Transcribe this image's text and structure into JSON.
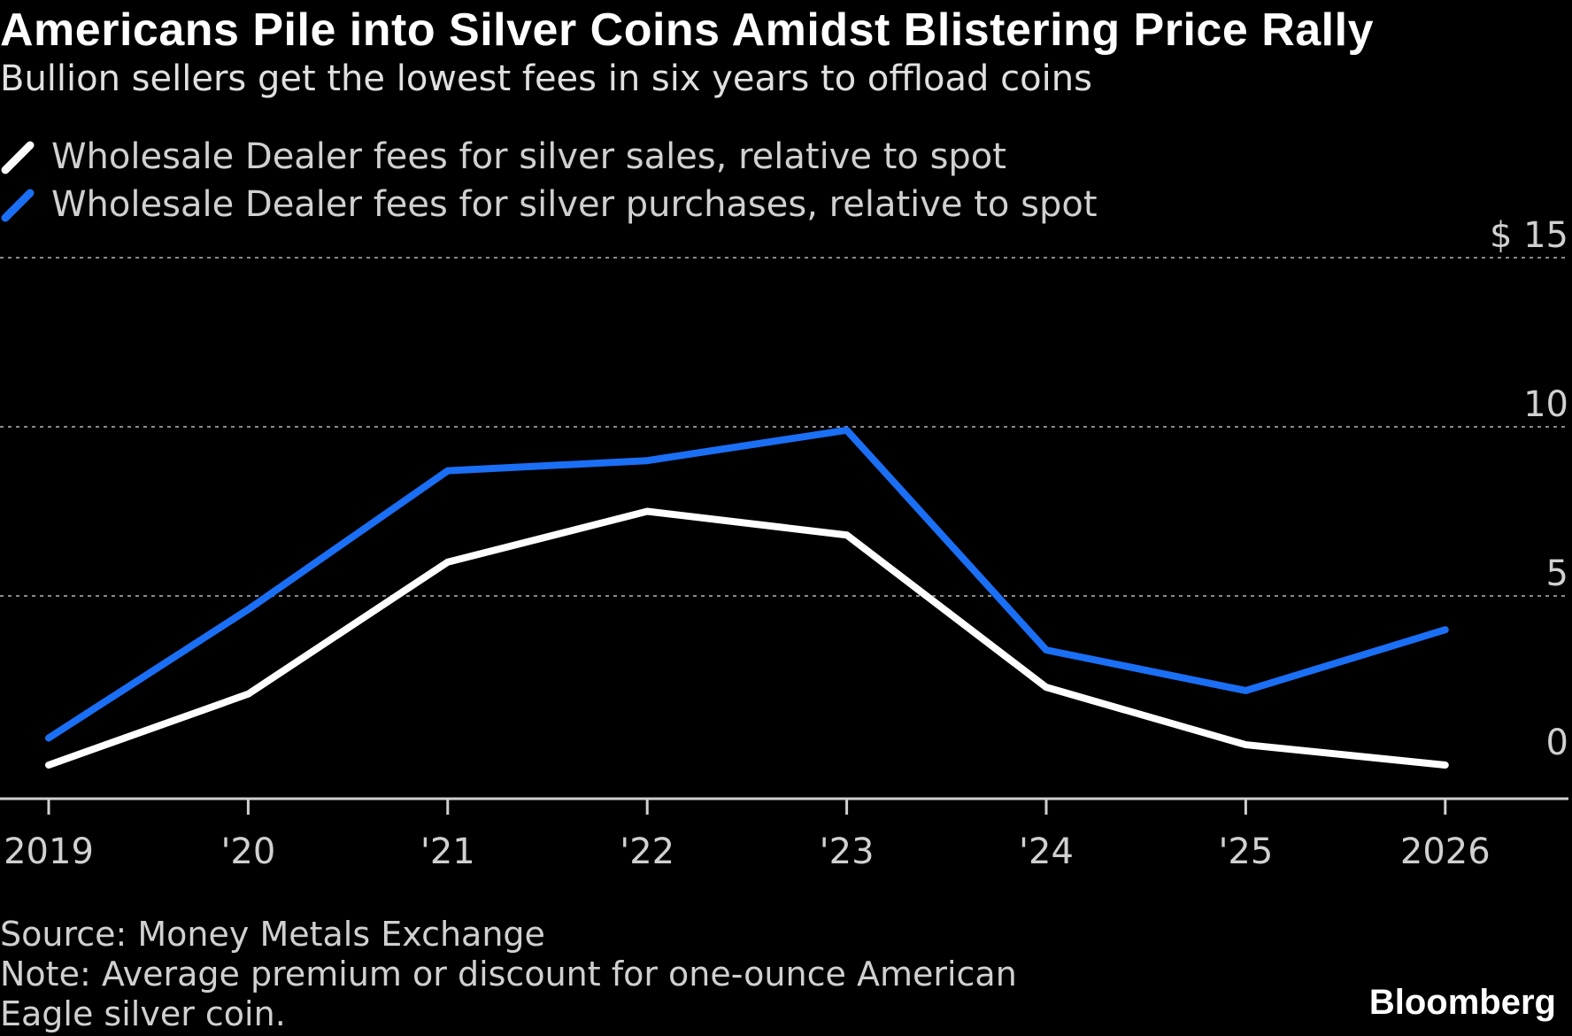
{
  "title": "Americans Pile into Silver Coins Amidst Blistering Price Rally",
  "subtitle": "Bullion sellers get the lowest fees in six years to offload coins",
  "legend": [
    {
      "label": "Wholesale Dealer fees for silver sales, relative to spot",
      "color": "#ffffff"
    },
    {
      "label": "Wholesale Dealer fees for silver purchases, relative to spot",
      "color": "#1a6ff5"
    }
  ],
  "source": "Source: Money Metals Exchange",
  "note": "Note: Average premium or discount for one-ounce American Eagle silver coin.",
  "brand": "Bloomberg",
  "chart_data": {
    "type": "line",
    "x": [
      2019,
      2020,
      2021,
      2022,
      2023,
      2024,
      2025,
      2026
    ],
    "xtick_labels": [
      "2019",
      "'20",
      "'21",
      "'22",
      "'23",
      "'24",
      "'25",
      "2026"
    ],
    "ylim": [
      -1,
      15
    ],
    "yticks": [
      0,
      5,
      10,
      15
    ],
    "ytick_labels": [
      "0",
      "5",
      "10",
      "$ 15"
    ],
    "grid": true,
    "legend_position": "top-left",
    "series": [
      {
        "name": "Wholesale Dealer fees for silver sales, relative to spot",
        "color": "#ffffff",
        "values": [
          0.0,
          2.1,
          6.0,
          7.5,
          6.8,
          2.3,
          0.6,
          0.0
        ]
      },
      {
        "name": "Wholesale Dealer fees for silver purchases, relative to spot",
        "color": "#1a6ff5",
        "values": [
          0.8,
          4.6,
          8.7,
          9.0,
          9.9,
          3.4,
          2.2,
          4.0
        ]
      }
    ]
  }
}
